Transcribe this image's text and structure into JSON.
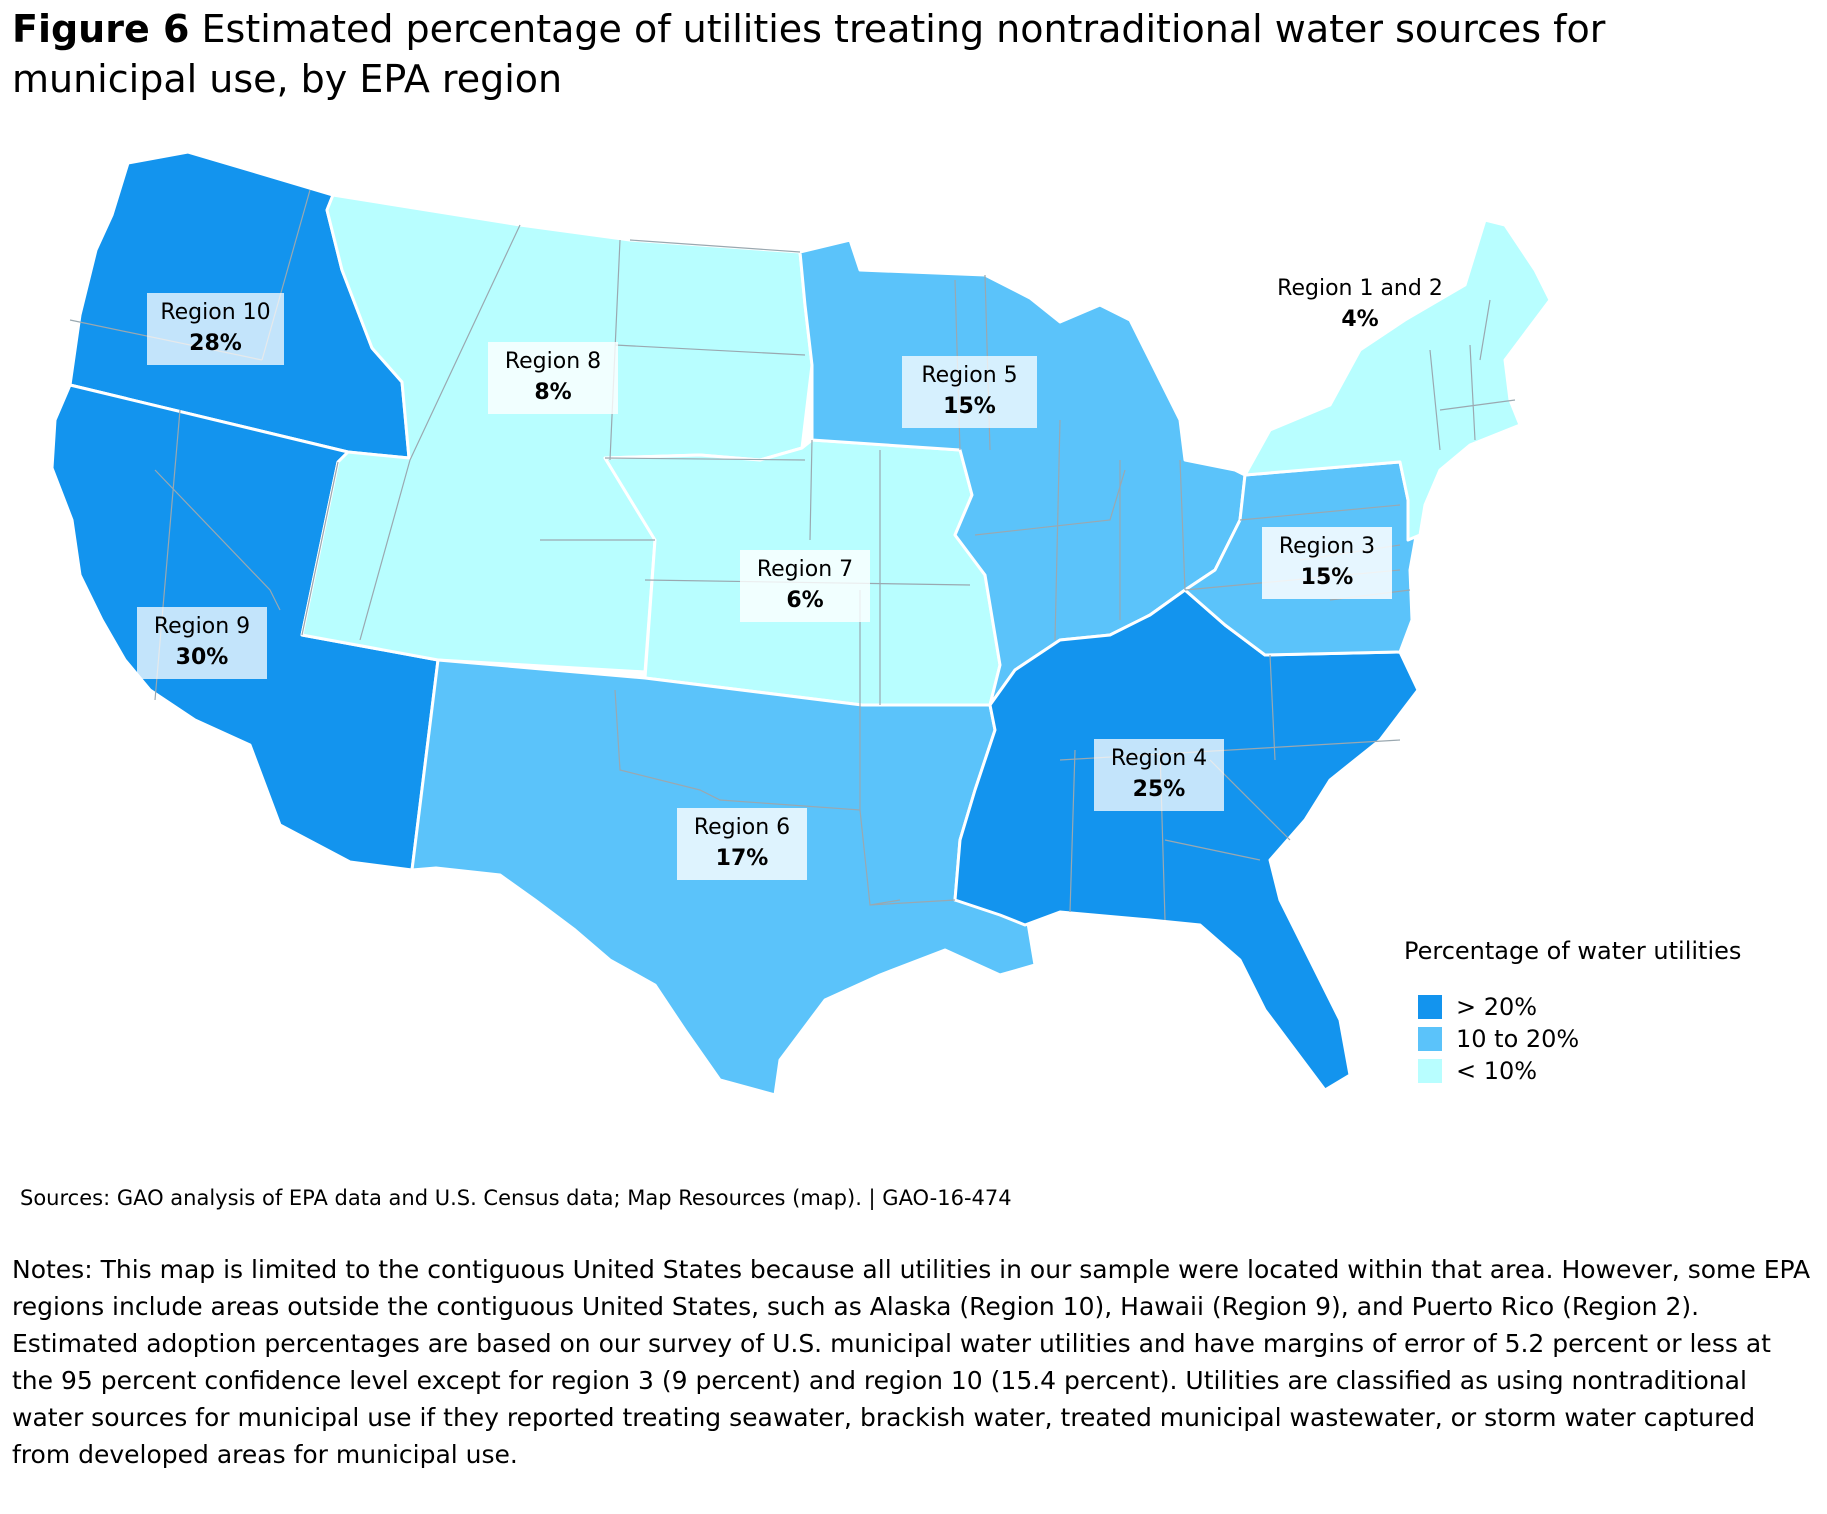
{
  "figure": {
    "label": "Figure 6",
    "title": "Estimated percentage of utilities treating nontraditional water sources for municipal use, by EPA region"
  },
  "colors": {
    "high": "#1394EE",
    "mid": "#5BC3FA",
    "low": "#B8FEFF",
    "state_border": "#9AA8B0",
    "region_border": "#FFFFFF"
  },
  "regions": [
    {
      "id": "region-10",
      "name": "Region 10",
      "value": "28%",
      "category": "> 20%"
    },
    {
      "id": "region-9",
      "name": "Region 9",
      "value": "30%",
      "category": "> 20%"
    },
    {
      "id": "region-8",
      "name": "Region 8",
      "value": "8%",
      "category": "< 10%"
    },
    {
      "id": "region-7",
      "name": "Region 7",
      "value": "6%",
      "category": "< 10%"
    },
    {
      "id": "region-6",
      "name": "Region 6",
      "value": "17%",
      "category": "10 to 20%"
    },
    {
      "id": "region-5",
      "name": "Region 5",
      "value": "15%",
      "category": "10 to 20%"
    },
    {
      "id": "region-4",
      "name": "Region 4",
      "value": "25%",
      "category": "> 20%"
    },
    {
      "id": "region-3",
      "name": "Region 3",
      "value": "15%",
      "category": "10 to 20%"
    },
    {
      "id": "region-1-2",
      "name": "Region 1 and 2",
      "value": "4%",
      "category": "< 10%"
    }
  ],
  "legend": {
    "title": "Percentage of water utilities",
    "items": [
      {
        "label": "> 20%",
        "color": "#1394EE"
      },
      {
        "label": "10 to 20%",
        "color": "#5BC3FA"
      },
      {
        "label": "< 10%",
        "color": "#B8FEFF"
      }
    ]
  },
  "source": "Sources: GAO analysis of EPA data and U.S. Census data; Map Resources (map).  |  GAO-16-474",
  "notes": "Notes: This map is limited to the contiguous United States because all utilities in our sample were located within that area. However, some EPA regions include areas outside the contiguous United States, such as Alaska (Region 10), Hawaii (Region 9), and Puerto Rico (Region 2). Estimated adoption percentages are based on our survey of U.S. municipal water utilities and have margins of error of 5.2 percent or less at the 95 percent confidence level except for region 3 (9 percent) and region 10 (15.4 percent). Utilities are classified as using nontraditional water sources for municipal use if they reported treating seawater, brackish water, treated municipal wastewater, or storm water captured from developed areas for municipal use."
}
